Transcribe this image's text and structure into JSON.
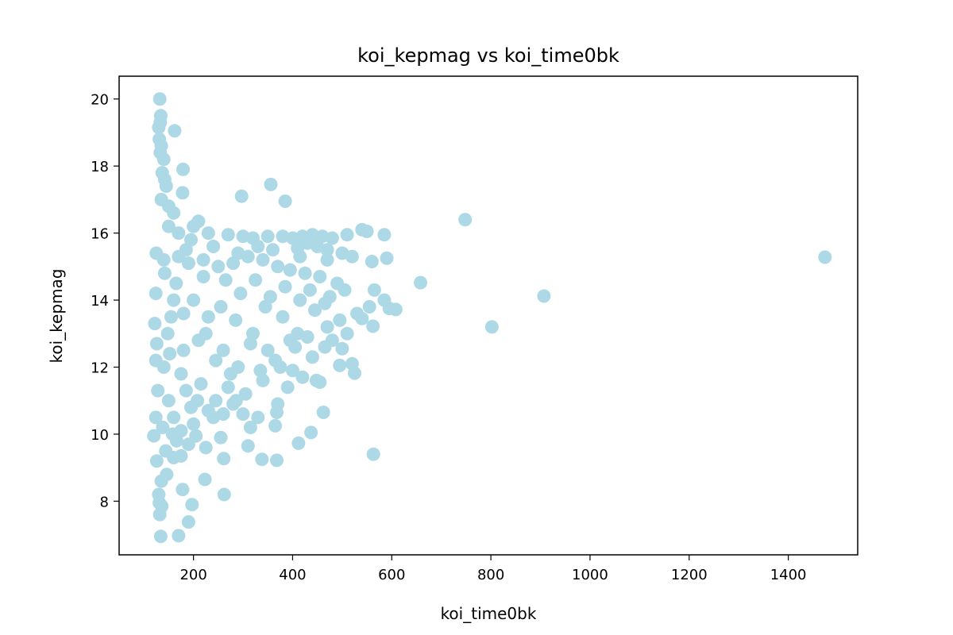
{
  "chart_data": {
    "type": "scatter",
    "title": "koi_kepmag vs koi_time0bk",
    "xlabel": "koi_time0bk",
    "ylabel": "koi_kepmag",
    "xlim": [
      50,
      1540
    ],
    "ylim": [
      6.4,
      20.68
    ],
    "xticks": [
      200,
      400,
      600,
      800,
      1000,
      1200,
      1400
    ],
    "xtick_labels": [
      "200",
      "400",
      "600",
      "800",
      "1000",
      "1200",
      "1400"
    ],
    "yticks": [
      8,
      10,
      12,
      14,
      16,
      18,
      20
    ],
    "ytick_labels": [
      "8",
      "10",
      "12",
      "14",
      "16",
      "18",
      "20"
    ],
    "grid": false,
    "legend": "none",
    "marker_color": "#add8e6",
    "points": [
      [
        132,
        20.0
      ],
      [
        134,
        19.5
      ],
      [
        133,
        19.3
      ],
      [
        130,
        19.15
      ],
      [
        162,
        19.05
      ],
      [
        131,
        18.8
      ],
      [
        135,
        18.6
      ],
      [
        133,
        18.4
      ],
      [
        140,
        18.2
      ],
      [
        179,
        17.9
      ],
      [
        137,
        17.8
      ],
      [
        142,
        17.6
      ],
      [
        145,
        17.4
      ],
      [
        178,
        17.2
      ],
      [
        297,
        17.1
      ],
      [
        356,
        17.45
      ],
      [
        385,
        16.95
      ],
      [
        135,
        17.0
      ],
      [
        150,
        16.8
      ],
      [
        160,
        16.6
      ],
      [
        748,
        16.4
      ],
      [
        210,
        16.35
      ],
      [
        230,
        16.0
      ],
      [
        270,
        15.95
      ],
      [
        300,
        15.9
      ],
      [
        320,
        15.85
      ],
      [
        350,
        15.9
      ],
      [
        380,
        15.9
      ],
      [
        400,
        15.85
      ],
      [
        420,
        15.9
      ],
      [
        440,
        15.95
      ],
      [
        460,
        15.9
      ],
      [
        480,
        15.85
      ],
      [
        510,
        15.95
      ],
      [
        540,
        16.1
      ],
      [
        550,
        16.05
      ],
      [
        585,
        15.95
      ],
      [
        1474,
        15.28
      ],
      [
        590,
        15.25
      ],
      [
        560,
        15.15
      ],
      [
        520,
        15.3
      ],
      [
        500,
        15.4
      ],
      [
        470,
        15.5
      ],
      [
        450,
        15.6
      ],
      [
        430,
        15.7
      ],
      [
        410,
        15.55
      ],
      [
        125,
        15.4
      ],
      [
        140,
        15.2
      ],
      [
        170,
        15.3
      ],
      [
        190,
        15.1
      ],
      [
        220,
        15.2
      ],
      [
        250,
        15.0
      ],
      [
        280,
        15.1
      ],
      [
        310,
        15.3
      ],
      [
        340,
        15.2
      ],
      [
        370,
        15.0
      ],
      [
        395,
        14.9
      ],
      [
        425,
        14.8
      ],
      [
        455,
        14.7
      ],
      [
        490,
        14.5
      ],
      [
        505,
        14.3
      ],
      [
        565,
        14.3
      ],
      [
        658,
        14.52
      ],
      [
        907,
        14.12
      ],
      [
        585,
        14.0
      ],
      [
        555,
        13.8
      ],
      [
        530,
        13.6
      ],
      [
        540,
        13.45
      ],
      [
        595,
        13.75
      ],
      [
        608,
        13.72
      ],
      [
        802,
        13.2
      ],
      [
        562,
        13.22
      ],
      [
        510,
        13.0
      ],
      [
        480,
        12.8
      ],
      [
        465,
        12.6
      ],
      [
        500,
        12.55
      ],
      [
        520,
        12.1
      ],
      [
        495,
        12.05
      ],
      [
        525,
        11.82
      ],
      [
        455,
        11.55
      ],
      [
        448,
        11.6
      ],
      [
        462,
        10.65
      ],
      [
        420,
        11.7
      ],
      [
        390,
        11.4
      ],
      [
        370,
        10.9
      ],
      [
        368,
        10.65
      ],
      [
        365,
        10.25
      ],
      [
        330,
        10.5
      ],
      [
        315,
        10.2
      ],
      [
        300,
        10.6
      ],
      [
        286,
        11.0
      ],
      [
        310,
        9.65
      ],
      [
        260,
        10.6
      ],
      [
        240,
        10.5
      ],
      [
        205,
        9.95
      ],
      [
        190,
        9.7
      ],
      [
        175,
        9.35
      ],
      [
        160,
        9.3
      ],
      [
        146,
        8.8
      ],
      [
        135,
        8.6
      ],
      [
        130,
        8.2
      ],
      [
        131,
        7.95
      ],
      [
        136,
        7.85
      ],
      [
        132,
        7.6
      ],
      [
        134,
        6.95
      ],
      [
        170,
        6.97
      ],
      [
        190,
        7.38
      ],
      [
        197,
        7.9
      ],
      [
        178,
        8.35
      ],
      [
        223,
        8.65
      ],
      [
        262,
        8.2
      ],
      [
        261,
        9.27
      ],
      [
        338,
        9.25
      ],
      [
        368,
        9.22
      ],
      [
        412,
        9.73
      ],
      [
        437,
        10.05
      ],
      [
        563,
        9.4
      ],
      [
        122,
        13.3
      ],
      [
        124,
        12.2
      ],
      [
        128,
        11.3
      ],
      [
        120,
        9.95
      ],
      [
        126,
        9.2
      ],
      [
        124,
        10.5
      ],
      [
        124,
        14.2
      ],
      [
        126,
        12.7
      ],
      [
        200,
        14.0
      ],
      [
        230,
        13.5
      ],
      [
        260,
        12.5
      ],
      [
        290,
        12.0
      ],
      [
        320,
        13.0
      ],
      [
        350,
        12.5
      ],
      [
        380,
        13.5
      ],
      [
        410,
        13.0
      ],
      [
        440,
        12.3
      ],
      [
        470,
        13.2
      ],
      [
        215,
        11.5
      ],
      [
        245,
        11.0
      ],
      [
        275,
        11.8
      ],
      [
        305,
        11.2
      ],
      [
        335,
        11.9
      ],
      [
        365,
        12.2
      ],
      [
        395,
        12.8
      ],
      [
        180,
        12.5
      ],
      [
        150,
        11.0
      ],
      [
        155,
        13.5
      ],
      [
        165,
        14.5
      ],
      [
        185,
        15.5
      ],
      [
        200,
        16.2
      ],
      [
        240,
        15.6
      ],
      [
        265,
        14.6
      ],
      [
        295,
        14.2
      ],
      [
        325,
        14.6
      ],
      [
        355,
        14.1
      ],
      [
        385,
        14.4
      ],
      [
        415,
        14.0
      ],
      [
        445,
        13.7
      ],
      [
        475,
        14.1
      ],
      [
        140,
        12.0
      ],
      [
        160,
        10.5
      ],
      [
        175,
        11.8
      ],
      [
        195,
        10.8
      ],
      [
        210,
        12.8
      ],
      [
        225,
        13.0
      ],
      [
        255,
        13.8
      ],
      [
        285,
        13.4
      ],
      [
        315,
        12.7
      ],
      [
        345,
        13.8
      ],
      [
        375,
        12.0
      ],
      [
        405,
        12.6
      ],
      [
        435,
        14.3
      ],
      [
        465,
        13.9
      ],
      [
        150,
        16.2
      ],
      [
        170,
        16.0
      ],
      [
        195,
        15.8
      ],
      [
        142,
        14.8
      ],
      [
        148,
        13.0
      ],
      [
        152,
        12.4
      ],
      [
        158,
        10.0
      ],
      [
        166,
        9.8
      ],
      [
        144,
        9.5
      ],
      [
        138,
        10.2
      ],
      [
        160,
        14.0
      ],
      [
        180,
        13.6
      ],
      [
        220,
        14.7
      ],
      [
        245,
        12.2
      ],
      [
        270,
        11.4
      ],
      [
        290,
        15.4
      ],
      [
        330,
        15.6
      ],
      [
        360,
        15.5
      ],
      [
        415,
        15.3
      ],
      [
        470,
        15.2
      ],
      [
        495,
        13.4
      ],
      [
        430,
        12.9
      ],
      [
        400,
        11.9
      ],
      [
        340,
        11.6
      ],
      [
        280,
        10.9
      ],
      [
        230,
        10.7
      ],
      [
        200,
        10.3
      ],
      [
        185,
        11.3
      ],
      [
        208,
        11.0
      ],
      [
        255,
        9.9
      ],
      [
        225,
        9.6
      ],
      [
        175,
        10.1
      ]
    ]
  }
}
